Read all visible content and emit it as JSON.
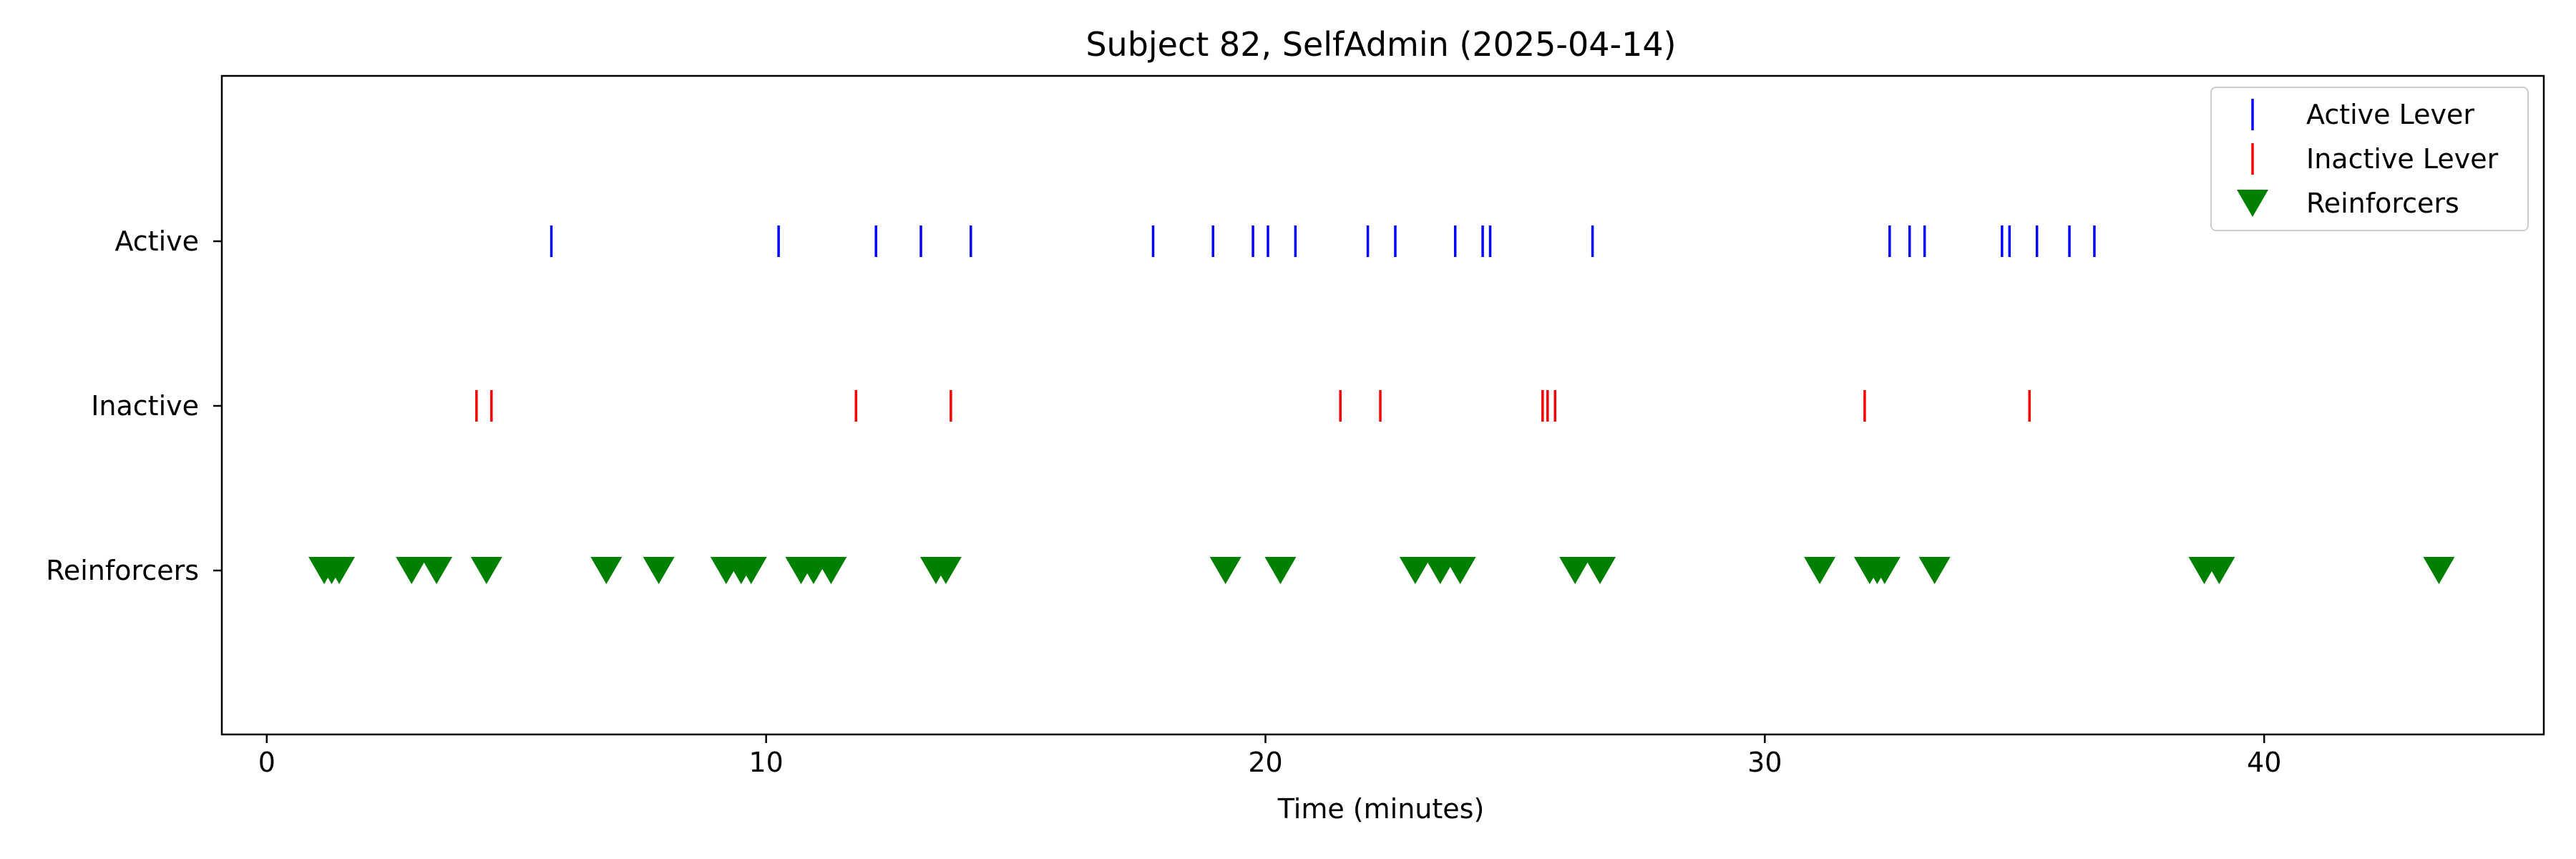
{
  "chart_data": {
    "type": "scatter",
    "title": "Subject 82, SelfAdmin (2025-04-14)",
    "xlabel": "Time (minutes)",
    "ylabel": "",
    "xlim": [
      -0.9,
      45.6
    ],
    "xticks": [
      0,
      10,
      20,
      30,
      40
    ],
    "categories": [
      "Active",
      "Inactive",
      "Reinforcers"
    ],
    "grid": false,
    "legend_position": "top-right",
    "series": [
      {
        "name": "Active Lever",
        "row": "Active",
        "marker": "vline",
        "color": "#0000ff",
        "x": [
          5.7,
          10.25,
          12.2,
          13.1,
          14.1,
          17.75,
          18.95,
          19.75,
          20.05,
          20.6,
          22.05,
          22.6,
          23.8,
          24.35,
          24.5,
          26.55,
          32.5,
          32.9,
          33.2,
          34.75,
          34.9,
          35.45,
          36.1,
          36.6
        ]
      },
      {
        "name": "Inactive Lever",
        "row": "Inactive",
        "marker": "vline",
        "color": "#ff0000",
        "x": [
          4.2,
          4.5,
          11.8,
          13.7,
          21.5,
          22.3,
          25.55,
          25.65,
          25.8,
          32.0,
          35.3
        ]
      },
      {
        "name": "Reinforcers",
        "row": "Reinforcers",
        "marker": "triangle-down",
        "color": "#008000",
        "x": [
          1.15,
          1.3,
          1.45,
          2.9,
          3.4,
          4.4,
          6.8,
          7.85,
          9.2,
          9.5,
          9.7,
          10.7,
          10.95,
          11.3,
          13.4,
          13.6,
          19.2,
          20.3,
          23.0,
          23.5,
          23.9,
          26.2,
          26.7,
          31.1,
          32.1,
          32.25,
          32.4,
          33.4,
          38.8,
          39.1,
          43.5
        ]
      }
    ]
  }
}
